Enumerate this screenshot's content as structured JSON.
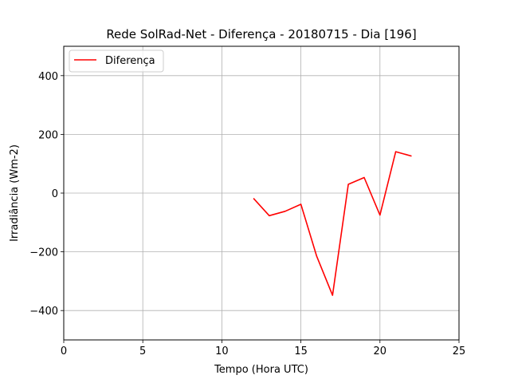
{
  "chart_data": {
    "type": "line",
    "title": "Rede SolRad-Net - Diferença - 20180715 - Dia [196]",
    "xlabel": "Tempo (Hora UTC)",
    "ylabel": "Irradiância (Wm-2)",
    "xlim": [
      0,
      25
    ],
    "ylim": [
      -500,
      500
    ],
    "xticks": [
      0,
      5,
      10,
      15,
      20,
      25
    ],
    "yticks": [
      -400,
      -200,
      0,
      200,
      400
    ],
    "xtick_labels": [
      "0",
      "5",
      "10",
      "15",
      "20",
      "25"
    ],
    "ytick_labels": [
      "−400",
      "−200",
      "0",
      "200",
      "400"
    ],
    "grid": true,
    "legend_position": "top-left",
    "series": [
      {
        "name": "Diferença",
        "color": "#ff0000",
        "x": [
          12,
          13,
          14,
          15,
          16,
          17,
          18,
          19,
          20,
          21,
          22
        ],
        "y": [
          -18,
          -77,
          -62,
          -38,
          -215,
          -348,
          30,
          53,
          -75,
          141,
          126
        ]
      }
    ]
  }
}
